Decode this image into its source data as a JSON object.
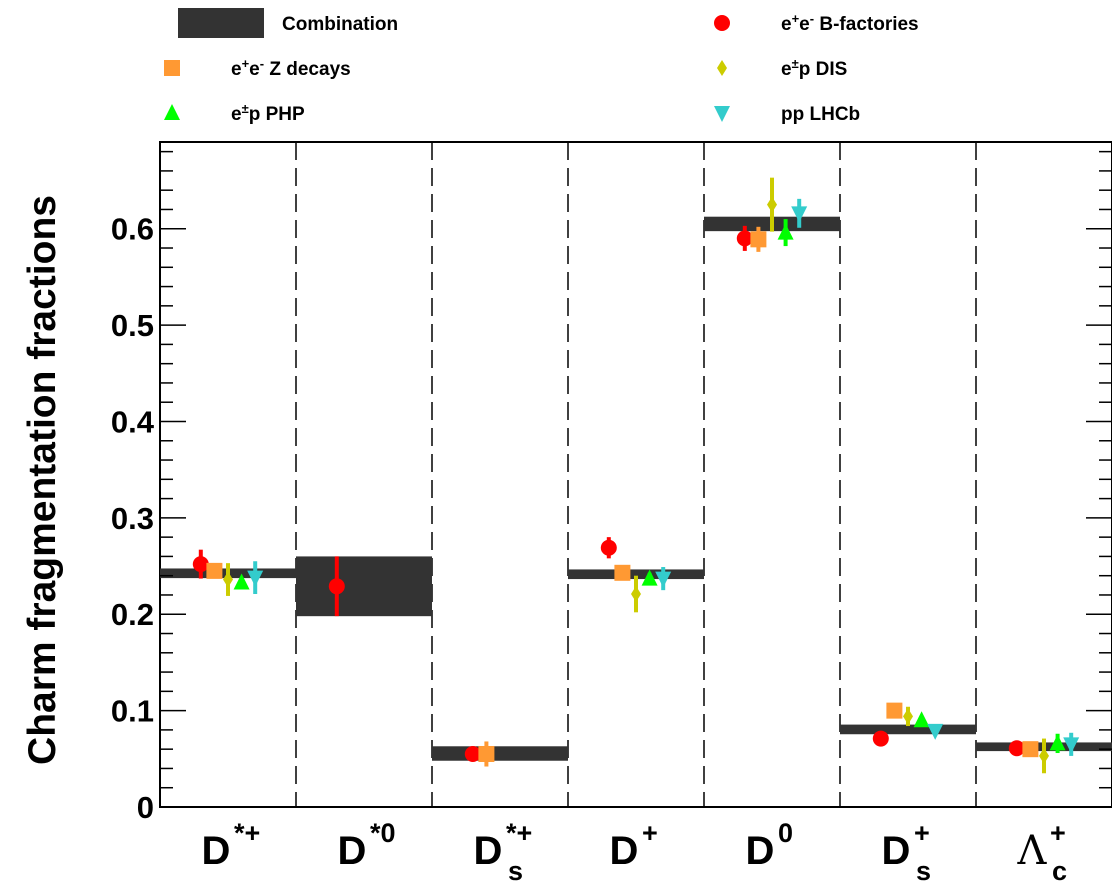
{
  "chart_data": {
    "type": "scatter",
    "title": "",
    "ylabel": "Charm fragmentation fractions",
    "xlabel": "",
    "ylim": [
      0,
      0.69
    ],
    "yticks": [
      {
        "value": 0,
        "label": "0"
      },
      {
        "value": 0.1,
        "label": "0.1"
      },
      {
        "value": 0.2,
        "label": "0.2"
      },
      {
        "value": 0.3,
        "label": "0.3"
      },
      {
        "value": 0.4,
        "label": "0.4"
      },
      {
        "value": 0.5,
        "label": "0.5"
      },
      {
        "value": 0.6,
        "label": "0.6"
      }
    ],
    "categories": [
      {
        "base": "D",
        "sup": "*+",
        "sub": ""
      },
      {
        "base": "D",
        "sup": "*0",
        "sub": ""
      },
      {
        "base": "D",
        "sup": "*+",
        "sub": "s"
      },
      {
        "base": "D",
        "sup": "+",
        "sub": ""
      },
      {
        "base": "D",
        "sup": "0",
        "sub": ""
      },
      {
        "base": "D",
        "sup": "+",
        "sub": "s"
      },
      {
        "base": "Λ",
        "sup": "+",
        "sub": "c"
      }
    ],
    "legend": [
      {
        "key": "combination",
        "label": "Combination",
        "marker": "band",
        "color": "#333333"
      },
      {
        "key": "bfact",
        "label_parts": [
          [
            "e",
            ""
          ],
          [
            "+",
            "sup"
          ],
          [
            "e",
            ""
          ],
          [
            "-",
            "sup"
          ],
          [
            " B-factories",
            ""
          ]
        ],
        "marker": "circle",
        "color": "#ff0000"
      },
      {
        "key": "zdecays",
        "label_parts": [
          [
            "e",
            ""
          ],
          [
            "+",
            "sup"
          ],
          [
            "e",
            ""
          ],
          [
            "-",
            "sup"
          ],
          [
            " Z decays",
            ""
          ]
        ],
        "marker": "square",
        "color": "#ff9933"
      },
      {
        "key": "dis",
        "label_parts": [
          [
            "e",
            ""
          ],
          [
            "±",
            "sup"
          ],
          [
            "p DIS",
            ""
          ]
        ],
        "marker": "diamond",
        "color": "#cccc00"
      },
      {
        "key": "php",
        "label_parts": [
          [
            "e",
            ""
          ],
          [
            "±",
            "sup"
          ],
          [
            "p PHP",
            ""
          ]
        ],
        "marker": "triangle-up",
        "color": "#00ff00"
      },
      {
        "key": "lhcb",
        "label_parts": [
          [
            "pp LHCb",
            ""
          ]
        ],
        "marker": "triangle-down",
        "color": "#33cccc"
      }
    ],
    "combination": [
      {
        "center": 0.2425,
        "half_width": 0.005
      },
      {
        "center": 0.229,
        "half_width": 0.031
      },
      {
        "center": 0.0555,
        "half_width": 0.0075
      },
      {
        "center": 0.2415,
        "half_width": 0.005
      },
      {
        "center": 0.605,
        "half_width": 0.0075
      },
      {
        "center": 0.0805,
        "half_width": 0.005
      },
      {
        "center": 0.0625,
        "half_width": 0.0045
      }
    ],
    "series": [
      {
        "key": "bfact",
        "name": "e+e- B-factories",
        "points": [
          [
            0,
            0.252,
            0.015
          ],
          [
            1,
            0.229,
            0.031
          ],
          [
            2,
            0.055,
            0.0
          ],
          [
            3,
            0.269,
            0.011
          ],
          [
            4,
            0.59,
            0.013
          ],
          [
            5,
            0.071,
            0.0
          ],
          [
            6,
            0.061,
            0.0
          ]
        ]
      },
      {
        "key": "zdecays",
        "name": "e+e- Z decays",
        "points": [
          [
            0,
            0.245,
            0.0
          ],
          [
            2,
            0.055,
            0.013
          ],
          [
            3,
            0.243,
            0.008
          ],
          [
            4,
            0.589,
            0.013
          ],
          [
            5,
            0.1,
            0.0
          ],
          [
            6,
            0.06,
            0.0
          ]
        ]
      },
      {
        "key": "dis",
        "name": "e±p DIS",
        "points": [
          [
            0,
            0.236,
            0.017
          ],
          [
            3,
            0.221,
            0.019
          ],
          [
            4,
            0.625,
            0.028
          ],
          [
            5,
            0.094,
            0.01
          ],
          [
            6,
            0.053,
            0.018
          ]
        ]
      },
      {
        "key": "php",
        "name": "e±p PHP",
        "points": [
          [
            0,
            0.233,
            0.005
          ],
          [
            3,
            0.237,
            0.006
          ],
          [
            4,
            0.596,
            0.014
          ],
          [
            5,
            0.09,
            0.0
          ],
          [
            6,
            0.066,
            0.01
          ]
        ]
      },
      {
        "key": "lhcb",
        "name": "pp LHCb",
        "points": [
          [
            0,
            0.238,
            0.017
          ],
          [
            3,
            0.237,
            0.012
          ],
          [
            4,
            0.616,
            0.015
          ],
          [
            5,
            0.079,
            0.0
          ],
          [
            6,
            0.065,
            0.012
          ]
        ]
      }
    ]
  }
}
